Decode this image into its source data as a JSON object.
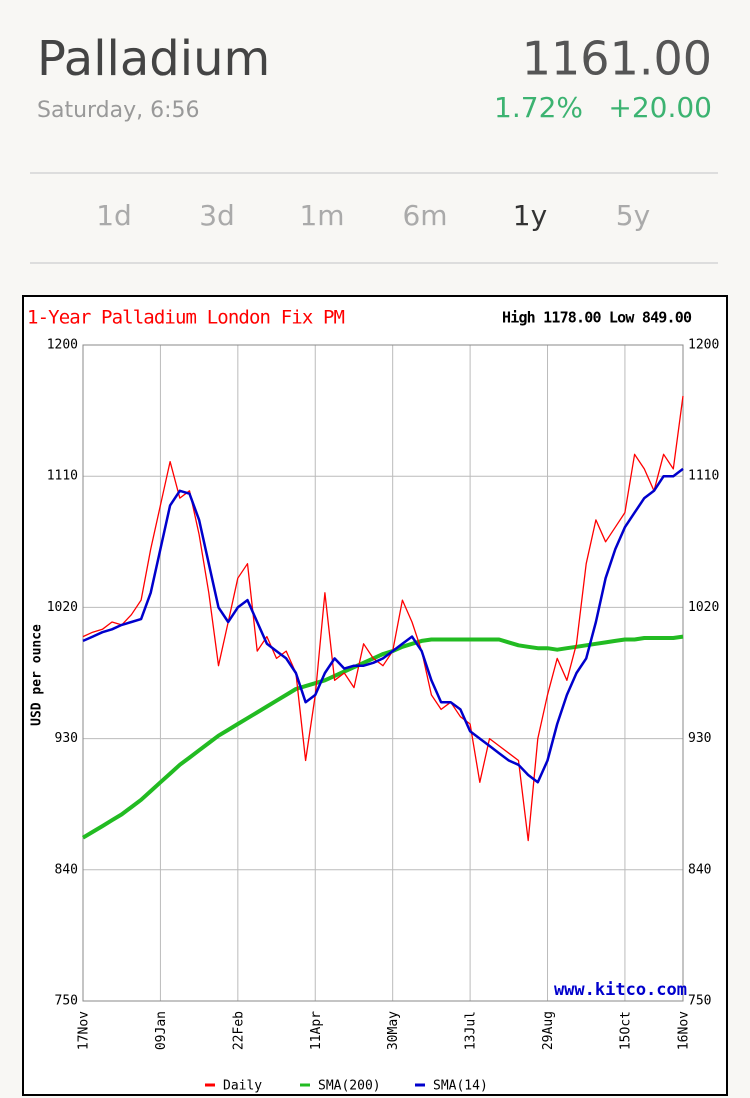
{
  "header": {
    "title": "Palladium",
    "subtitle": "Saturday, 6:56",
    "price": "1161.00",
    "change_pct": "1.72%",
    "change_abs": "+20.00"
  },
  "tabs": {
    "items": [
      "1d",
      "3d",
      "1m",
      "6m",
      "1y",
      "5y"
    ],
    "selected": "1y"
  },
  "chart_data": {
    "type": "line",
    "title": "1-Year Palladium London Fix PM",
    "annotation": "High 1178.00 Low 849.00",
    "watermark": "www.kitco.com",
    "ylabel": "USD per ounce",
    "categories": [
      "17Nov",
      null,
      null,
      null,
      null,
      null,
      null,
      null,
      "09Jan",
      null,
      null,
      null,
      null,
      null,
      null,
      null,
      "22Feb",
      null,
      null,
      null,
      null,
      null,
      null,
      null,
      "11Apr",
      null,
      null,
      null,
      null,
      null,
      null,
      null,
      "30May",
      null,
      null,
      null,
      null,
      null,
      null,
      null,
      "13Jul",
      null,
      null,
      null,
      null,
      null,
      null,
      null,
      "29Aug",
      null,
      null,
      null,
      null,
      null,
      null,
      null,
      "15Oct",
      null,
      null,
      null,
      null,
      null,
      "16Nov"
    ],
    "series": [
      {
        "name": "Daily",
        "color": "#ff0000",
        "values": [
          1000,
          1003,
          1005,
          1010,
          1008,
          1015,
          1025,
          1060,
          1090,
          1120,
          1095,
          1100,
          1070,
          1030,
          980,
          1010,
          1040,
          1050,
          990,
          1000,
          985,
          990,
          975,
          915,
          960,
          1030,
          970,
          975,
          965,
          995,
          985,
          980,
          990,
          1025,
          1010,
          990,
          960,
          950,
          955,
          945,
          940,
          900,
          930,
          925,
          920,
          915,
          860,
          930,
          960,
          985,
          970,
          995,
          1050,
          1080,
          1065,
          1075,
          1085,
          1125,
          1115,
          1100,
          1125,
          1115,
          1165
        ]
      },
      {
        "name": "SMA(200)",
        "color": "#22bb22",
        "values": [
          862,
          866,
          870,
          874,
          878,
          883,
          888,
          894,
          900,
          906,
          912,
          917,
          922,
          927,
          932,
          936,
          940,
          944,
          948,
          952,
          956,
          960,
          964,
          966,
          968,
          970,
          973,
          976,
          979,
          982,
          985,
          988,
          990,
          993,
          995,
          997,
          998,
          998,
          998,
          998,
          998,
          998,
          998,
          998,
          996,
          994,
          993,
          992,
          992,
          991,
          992,
          993,
          994,
          995,
          996,
          997,
          998,
          998,
          999,
          999,
          999,
          999,
          1000
        ]
      },
      {
        "name": "SMA(14)",
        "color": "#0000cc",
        "values": [
          997,
          1000,
          1003,
          1005,
          1008,
          1010,
          1012,
          1030,
          1060,
          1090,
          1100,
          1098,
          1080,
          1050,
          1020,
          1010,
          1020,
          1025,
          1010,
          995,
          990,
          985,
          975,
          955,
          960,
          975,
          985,
          978,
          980,
          980,
          982,
          985,
          990,
          995,
          1000,
          990,
          970,
          955,
          955,
          950,
          935,
          930,
          925,
          920,
          915,
          912,
          905,
          900,
          915,
          940,
          960,
          975,
          985,
          1010,
          1040,
          1060,
          1075,
          1085,
          1095,
          1100,
          1110,
          1110,
          1115
        ]
      }
    ],
    "ylim": [
      750,
      1200
    ],
    "yticks": [
      750,
      840,
      930,
      1020,
      1110,
      1200
    ],
    "grid": true
  }
}
